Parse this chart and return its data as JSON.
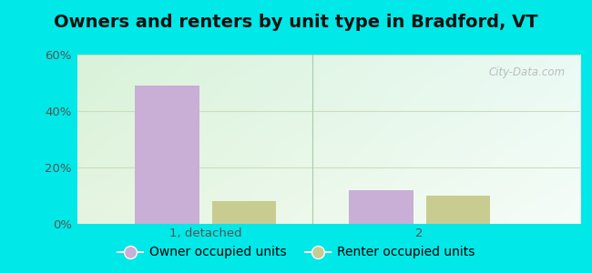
{
  "title": "Owners and renters by unit type in Bradford, VT",
  "categories": [
    "1, detached",
    "2"
  ],
  "series": [
    {
      "name": "Owner occupied units",
      "values": [
        49,
        12
      ],
      "color": "#c9aed6"
    },
    {
      "name": "Renter occupied units",
      "values": [
        8,
        10
      ],
      "color": "#c8cc90"
    }
  ],
  "ylim": [
    0,
    60
  ],
  "yticks": [
    0,
    20,
    40,
    60
  ],
  "ytick_labels": [
    "0%",
    "20%",
    "40%",
    "60%"
  ],
  "bar_width": 0.3,
  "outer_bg": "#00e8e8",
  "grid_color": "#ccddbb",
  "watermark": "City-Data.com",
  "title_fontsize": 14,
  "legend_fontsize": 10,
  "tick_fontsize": 9.5
}
